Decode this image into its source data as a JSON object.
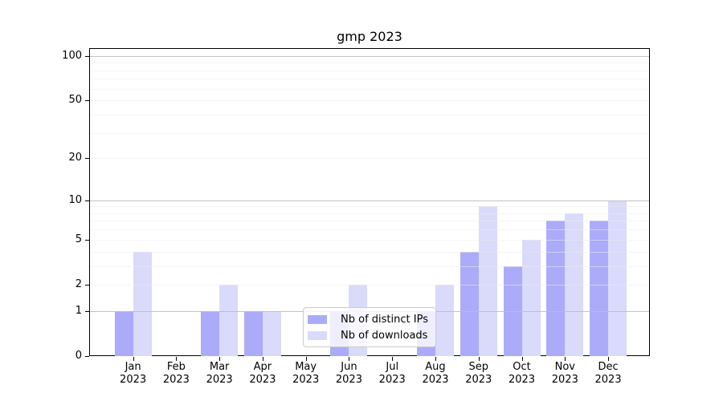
{
  "chart_data": {
    "type": "bar",
    "title": "gmp 2023",
    "categories": [
      [
        "Jan",
        "2023"
      ],
      [
        "Feb",
        "2023"
      ],
      [
        "Mar",
        "2023"
      ],
      [
        "Apr",
        "2023"
      ],
      [
        "May",
        "2023"
      ],
      [
        "Jun",
        "2023"
      ],
      [
        "Jul",
        "2023"
      ],
      [
        "Aug",
        "2023"
      ],
      [
        "Sep",
        "2023"
      ],
      [
        "Oct",
        "2023"
      ],
      [
        "Nov",
        "2023"
      ],
      [
        "Dec",
        "2023"
      ]
    ],
    "series": [
      {
        "name": "Nb of distinct IPs",
        "color": "#ababfa",
        "values": [
          1,
          0,
          1,
          1,
          0,
          1,
          0,
          1,
          4,
          3,
          7,
          7
        ]
      },
      {
        "name": "Nb of downloads",
        "color": "#dadafa",
        "values": [
          4,
          0,
          2,
          1,
          0,
          2,
          0,
          2,
          9,
          5,
          8,
          10
        ]
      }
    ],
    "xlabel": "",
    "ylabel": "",
    "yscale": "log1p",
    "yticks": [
      0,
      1,
      2,
      5,
      10,
      20,
      50,
      100
    ],
    "ylim": [
      0,
      113
    ],
    "grid": "horizontal, minor and major lines",
    "grid_major_color": "#bdbdbd",
    "grid_minor_color": "#ececec",
    "axis_color": "#000000",
    "background_color": "#ffffff",
    "legend_position": "lower center"
  }
}
